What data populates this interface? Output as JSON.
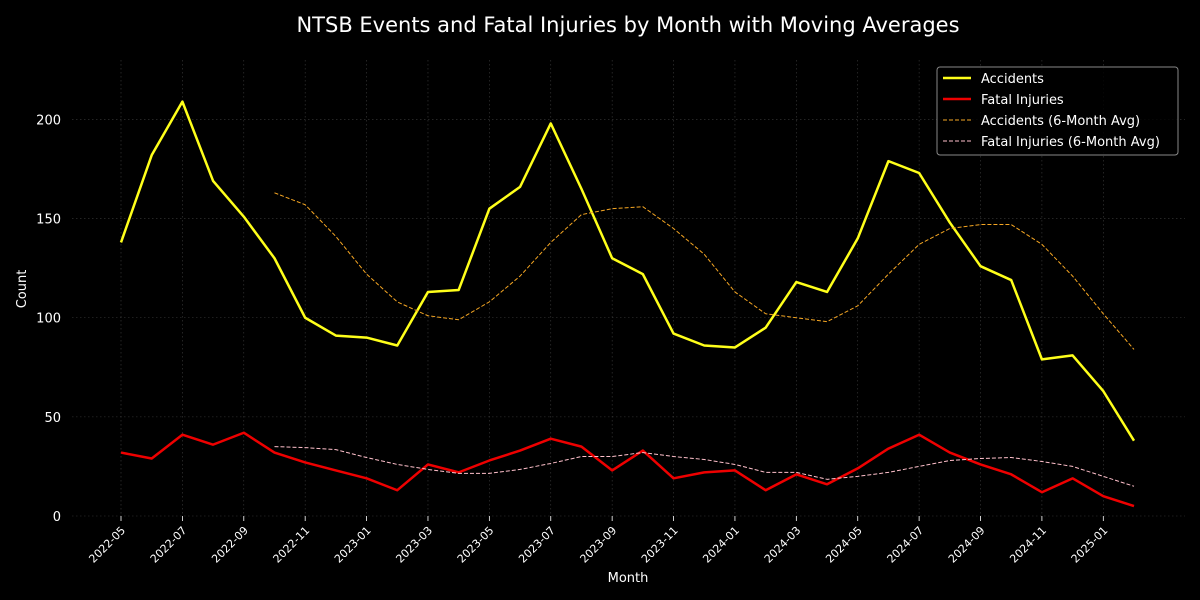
{
  "chart_data": {
    "type": "line",
    "title": "NTSB Events and Fatal Injuries by Month with Moving Averages",
    "xlabel": "Month",
    "ylabel": "Count",
    "ylim": [
      0,
      230
    ],
    "yticks": [
      0,
      50,
      100,
      150,
      200
    ],
    "x": [
      "2022-05",
      "2022-06",
      "2022-07",
      "2022-08",
      "2022-09",
      "2022-10",
      "2022-11",
      "2022-12",
      "2023-01",
      "2023-02",
      "2023-03",
      "2023-04",
      "2023-05",
      "2023-06",
      "2023-07",
      "2023-08",
      "2023-09",
      "2023-10",
      "2023-11",
      "2023-12",
      "2024-01",
      "2024-02",
      "2024-03",
      "2024-04",
      "2024-05",
      "2024-06",
      "2024-07",
      "2024-08",
      "2024-09",
      "2024-10",
      "2024-11",
      "2024-12",
      "2025-01",
      "2025-02"
    ],
    "xtick_labels": [
      "2022-05",
      "2022-07",
      "2022-09",
      "2022-11",
      "2023-01",
      "2023-03",
      "2023-05",
      "2023-07",
      "2023-09",
      "2023-11",
      "2024-01",
      "2024-03",
      "2024-05",
      "2024-07",
      "2024-09",
      "2024-11",
      "2025-01"
    ],
    "grid": true,
    "legend_position": "top-right",
    "series": [
      {
        "name": "Accidents",
        "color": "#ffff1a",
        "style": "solid",
        "values": [
          138,
          182,
          209,
          169,
          151,
          130,
          100,
          91,
          90,
          86,
          113,
          114,
          155,
          166,
          198,
          165,
          130,
          122,
          92,
          86,
          85,
          95,
          118,
          113,
          140,
          179,
          173,
          148,
          126,
          119,
          79,
          81,
          63,
          38
        ]
      },
      {
        "name": "Fatal Injuries",
        "color": "#ee0000",
        "style": "solid",
        "values": [
          32,
          29,
          41,
          36,
          42,
          32,
          27,
          23,
          19,
          13,
          26,
          22,
          28,
          33,
          39,
          35,
          23,
          33,
          19,
          22,
          23,
          13,
          21,
          16,
          24,
          34,
          41,
          32,
          26,
          21,
          12,
          19,
          10,
          5
        ]
      },
      {
        "name": "Accidents (6-Month Avg)",
        "color": "#f5a623",
        "style": "dashed",
        "values": [
          null,
          null,
          null,
          null,
          null,
          163,
          157,
          141,
          122,
          108,
          101,
          99,
          108,
          121,
          138,
          152,
          155,
          156,
          145,
          132,
          113,
          102,
          100,
          98,
          106,
          122,
          137,
          145,
          147,
          147,
          137,
          121,
          102,
          84
        ]
      },
      {
        "name": "Fatal Injuries (6-Month Avg)",
        "color": "#ffc0cb",
        "style": "dashed",
        "values": [
          null,
          null,
          null,
          null,
          null,
          35,
          34.5,
          33.5,
          29.5,
          26,
          23.5,
          21.5,
          21.5,
          23.5,
          26.5,
          30,
          30,
          32,
          30,
          28.5,
          26,
          22,
          22,
          18.5,
          20,
          22,
          25,
          28,
          29,
          29.5,
          27.5,
          25,
          20,
          15
        ]
      }
    ]
  }
}
